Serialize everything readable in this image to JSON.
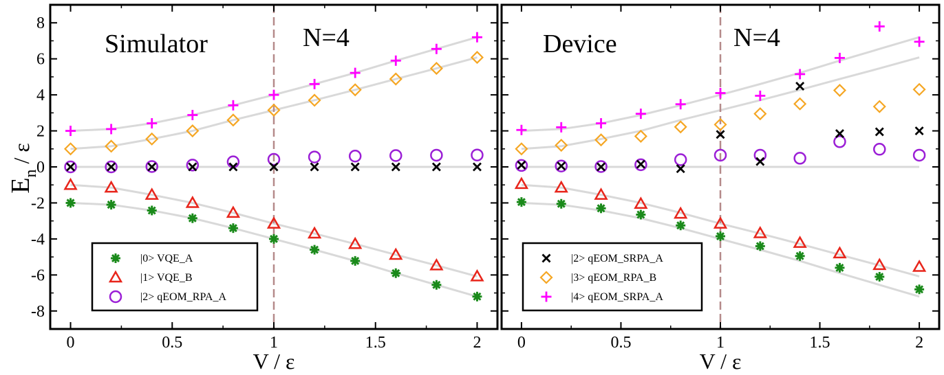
{
  "ylabel_main": "E",
  "ylabel_sub": "n",
  "ylabel_rest": " /  ε",
  "chart_data": [
    {
      "type": "scatter",
      "panel_label": "Simulator",
      "annotation": "N=4",
      "xlabel": "V /  ε",
      "xlim": [
        -0.1,
        2.1
      ],
      "ylim": [
        -9,
        9
      ],
      "x_ticks": [
        "0",
        "0.5",
        "1",
        "1.5",
        "2"
      ],
      "y_ticks": [
        "-8",
        "-6",
        "-4",
        "-2",
        "0",
        "2",
        "4",
        "6",
        "8"
      ],
      "vline_x": 1.0,
      "legend_position": "bottom-left",
      "legend": [
        {
          "label": "|0> VQE_A",
          "marker": "asterisk",
          "color": "#1a8a1a"
        },
        {
          "label": "|1> VQE_B",
          "marker": "triangle",
          "color": "#e8251b"
        },
        {
          "label": "|2> qEOM_RPA_A",
          "marker": "circle",
          "color": "#9b1fd6"
        }
      ],
      "series": [
        {
          "name": "|0> VQE_A",
          "marker": "asterisk",
          "color": "#1a8a1a",
          "x": [
            0,
            0.2,
            0.4,
            0.6,
            0.8,
            1.0,
            1.2,
            1.4,
            1.6,
            1.8,
            2.0
          ],
          "y": [
            -2.0,
            -2.1,
            -2.42,
            -2.85,
            -3.4,
            -4.0,
            -4.6,
            -5.22,
            -5.9,
            -6.55,
            -7.2
          ]
        },
        {
          "name": "|1> VQE_B",
          "marker": "triangle",
          "color": "#e8251b",
          "x": [
            0,
            0.2,
            0.4,
            0.6,
            0.8,
            1.0,
            1.2,
            1.4,
            1.6,
            1.8,
            2.0
          ],
          "y": [
            -1.0,
            -1.15,
            -1.55,
            -2.0,
            -2.55,
            -3.15,
            -3.7,
            -4.28,
            -4.88,
            -5.47,
            -6.08
          ]
        },
        {
          "name": "|2> qEOM_RPA_A",
          "marker": "circle",
          "color": "#9b1fd6",
          "x": [
            0,
            0.2,
            0.4,
            0.6,
            0.8,
            1.0,
            1.2,
            1.4,
            1.6,
            1.8,
            2.0
          ],
          "y": [
            0.0,
            0.0,
            0.02,
            0.1,
            0.28,
            0.42,
            0.55,
            0.6,
            0.63,
            0.65,
            0.66
          ]
        },
        {
          "name": "",
          "marker": "cross",
          "color": "#000000",
          "x": [
            0,
            0.2,
            0.4,
            0.6,
            0.8,
            1.0,
            1.2,
            1.4,
            1.6,
            1.8,
            2.0
          ],
          "y": [
            0,
            0,
            0,
            0,
            0,
            0,
            0,
            0,
            0,
            0,
            0
          ]
        },
        {
          "name": "",
          "marker": "diamond",
          "color": "#f5a623",
          "x": [
            0,
            0.2,
            0.4,
            0.6,
            0.8,
            1.0,
            1.2,
            1.4,
            1.6,
            1.8,
            2.0
          ],
          "y": [
            1.0,
            1.15,
            1.55,
            2.0,
            2.6,
            3.15,
            3.7,
            4.28,
            4.88,
            5.47,
            6.08
          ]
        },
        {
          "name": "",
          "marker": "plus",
          "color": "#ff00ff",
          "x": [
            0,
            0.2,
            0.4,
            0.6,
            0.8,
            1.0,
            1.2,
            1.4,
            1.6,
            1.8,
            2.0
          ],
          "y": [
            2.0,
            2.1,
            2.42,
            2.88,
            3.42,
            4.0,
            4.6,
            5.22,
            5.9,
            6.55,
            7.2
          ]
        }
      ],
      "curves": [
        {
          "x": [
            0,
            0.2,
            0.4,
            0.6,
            0.8,
            1.0,
            1.2,
            1.4,
            1.6,
            1.8,
            2.0
          ],
          "y": [
            -2.0,
            -2.1,
            -2.42,
            -2.85,
            -3.4,
            -4.0,
            -4.6,
            -5.22,
            -5.9,
            -6.55,
            -7.2
          ]
        },
        {
          "x": [
            0,
            0.2,
            0.4,
            0.6,
            0.8,
            1.0,
            1.2,
            1.4,
            1.6,
            1.8,
            2.0
          ],
          "y": [
            -1.0,
            -1.15,
            -1.55,
            -2.0,
            -2.55,
            -3.15,
            -3.7,
            -4.28,
            -4.88,
            -5.47,
            -6.08
          ]
        },
        {
          "x": [
            0,
            2.0
          ],
          "y": [
            0,
            0
          ]
        },
        {
          "x": [
            0,
            0.2,
            0.4,
            0.6,
            0.8,
            1.0,
            1.2,
            1.4,
            1.6,
            1.8,
            2.0
          ],
          "y": [
            1.0,
            1.15,
            1.55,
            2.0,
            2.6,
            3.15,
            3.7,
            4.28,
            4.88,
            5.47,
            6.08
          ]
        },
        {
          "x": [
            0,
            0.2,
            0.4,
            0.6,
            0.8,
            1.0,
            1.2,
            1.4,
            1.6,
            1.8,
            2.0
          ],
          "y": [
            2.0,
            2.1,
            2.42,
            2.88,
            3.42,
            4.0,
            4.6,
            5.22,
            5.9,
            6.55,
            7.2
          ]
        }
      ]
    },
    {
      "type": "scatter",
      "panel_label": "Device",
      "annotation": "N=4",
      "xlabel": "V /  ε",
      "xlim": [
        -0.1,
        2.1
      ],
      "ylim": [
        -9,
        9
      ],
      "x_ticks": [
        "0",
        "0.5",
        "1",
        "1.5",
        "2"
      ],
      "y_ticks": [
        "-8",
        "-6",
        "-4",
        "-2",
        "0",
        "2",
        "4",
        "6",
        "8"
      ],
      "vline_x": 1.0,
      "legend_position": "bottom-left",
      "legend": [
        {
          "label": "|2> qEOM_SRPA_A",
          "marker": "cross",
          "color": "#000000"
        },
        {
          "label": "|3> qEOM_RPA_B",
          "marker": "diamond",
          "color": "#f5a623"
        },
        {
          "label": "|4> qEOM_SRPA_A",
          "marker": "plus",
          "color": "#ff00ff"
        }
      ],
      "series": [
        {
          "name": "",
          "marker": "asterisk",
          "color": "#1a8a1a",
          "x": [
            0,
            0.2,
            0.4,
            0.6,
            0.8,
            1.0,
            1.2,
            1.4,
            1.6,
            1.8,
            2.0
          ],
          "y": [
            -1.95,
            -2.05,
            -2.3,
            -2.65,
            -3.25,
            -3.85,
            -4.4,
            -4.95,
            -5.6,
            -6.1,
            -6.8
          ]
        },
        {
          "name": "",
          "marker": "triangle",
          "color": "#e8251b",
          "x": [
            0,
            0.2,
            0.4,
            0.6,
            0.8,
            1.0,
            1.2,
            1.4,
            1.6,
            1.8,
            2.0
          ],
          "y": [
            -0.95,
            -1.15,
            -1.55,
            -2.05,
            -2.6,
            -3.15,
            -3.68,
            -4.22,
            -4.8,
            -5.45,
            -5.55
          ]
        },
        {
          "name": "",
          "marker": "circle",
          "color": "#9b1fd6",
          "x": [
            0,
            0.2,
            0.4,
            0.6,
            0.8,
            1.0,
            1.2,
            1.4,
            1.6,
            1.8,
            2.0
          ],
          "y": [
            0.08,
            0.05,
            0.02,
            0.12,
            0.4,
            0.65,
            0.65,
            0.48,
            1.4,
            0.98,
            0.65
          ]
        },
        {
          "name": "|2> qEOM_SRPA_A",
          "marker": "cross",
          "color": "#000000",
          "x": [
            0,
            0.2,
            0.4,
            0.6,
            0.8,
            1.0,
            1.2,
            1.4,
            1.6,
            1.8,
            2.0
          ],
          "y": [
            0.1,
            0.05,
            0.0,
            0.15,
            -0.1,
            1.8,
            0.3,
            4.48,
            1.85,
            1.95,
            2.0
          ]
        },
        {
          "name": "|3> qEOM_RPA_B",
          "marker": "diamond",
          "color": "#f5a623",
          "x": [
            0,
            0.2,
            0.4,
            0.6,
            0.8,
            1.0,
            1.2,
            1.4,
            1.6,
            1.8,
            2.0
          ],
          "y": [
            1.0,
            1.2,
            1.5,
            1.7,
            2.22,
            2.35,
            2.95,
            3.5,
            4.25,
            3.35,
            4.3
          ]
        },
        {
          "name": "|4> qEOM_SRPA_A",
          "marker": "plus",
          "color": "#ff00ff",
          "x": [
            0,
            0.2,
            0.4,
            0.6,
            0.8,
            1.0,
            1.2,
            1.4,
            1.6,
            1.8,
            2.0
          ],
          "y": [
            2.05,
            2.2,
            2.42,
            2.95,
            3.48,
            4.1,
            3.95,
            5.15,
            6.05,
            7.8,
            6.95
          ]
        }
      ],
      "curves": [
        {
          "x": [
            0,
            0.2,
            0.4,
            0.6,
            0.8,
            1.0,
            1.2,
            1.4,
            1.6,
            1.8,
            2.0
          ],
          "y": [
            -2.0,
            -2.1,
            -2.42,
            -2.85,
            -3.4,
            -4.0,
            -4.6,
            -5.22,
            -5.9,
            -6.55,
            -7.2
          ]
        },
        {
          "x": [
            0,
            0.2,
            0.4,
            0.6,
            0.8,
            1.0,
            1.2,
            1.4,
            1.6,
            1.8,
            2.0
          ],
          "y": [
            -1.0,
            -1.15,
            -1.55,
            -2.0,
            -2.55,
            -3.15,
            -3.7,
            -4.28,
            -4.88,
            -5.47,
            -6.08
          ]
        },
        {
          "x": [
            0,
            2.0
          ],
          "y": [
            0,
            0
          ]
        },
        {
          "x": [
            0,
            0.2,
            0.4,
            0.6,
            0.8,
            1.0,
            1.2,
            1.4,
            1.6,
            1.8,
            2.0
          ],
          "y": [
            1.0,
            1.15,
            1.55,
            2.0,
            2.6,
            3.15,
            3.7,
            4.28,
            4.88,
            5.47,
            6.08
          ]
        },
        {
          "x": [
            0,
            0.2,
            0.4,
            0.6,
            0.8,
            1.0,
            1.2,
            1.4,
            1.6,
            1.8,
            2.0
          ],
          "y": [
            2.0,
            2.1,
            2.42,
            2.88,
            3.42,
            4.0,
            4.6,
            5.22,
            5.9,
            6.55,
            7.2
          ]
        }
      ]
    }
  ]
}
